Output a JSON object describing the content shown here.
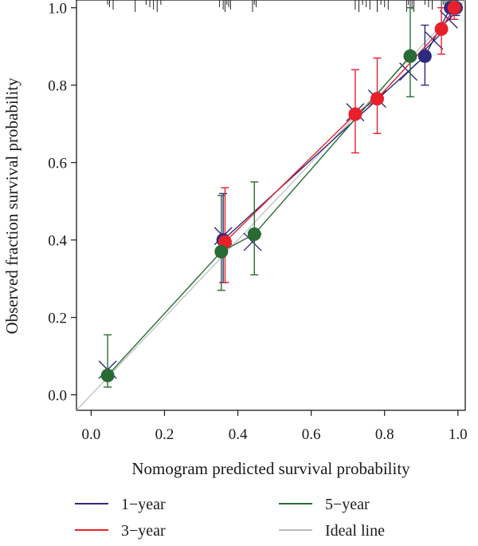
{
  "chart_data": {
    "type": "scatter",
    "title": "",
    "xlabel": "Nomogram predicted survival probability",
    "ylabel": "Observed fraction survival probability",
    "xlim": [
      -0.04,
      1.02
    ],
    "ylim": [
      -0.04,
      1.02
    ],
    "xticks": [
      0.0,
      0.2,
      0.4,
      0.6,
      0.8,
      1.0
    ],
    "yticks": [
      0.0,
      0.2,
      0.4,
      0.6,
      0.8,
      1.0
    ],
    "xtick_labels": [
      "0.0",
      "0.2",
      "0.4",
      "0.6",
      "0.8",
      "1.0"
    ],
    "ytick_labels": [
      "0.0",
      "0.2",
      "0.4",
      "0.6",
      "0.8",
      "1.0"
    ],
    "legend_position": "bottom",
    "ideal_line": {
      "name": "Ideal line",
      "color": "#bdbdbd"
    },
    "series": [
      {
        "name": "1−year",
        "color": "#2e2a7f",
        "points": [
          {
            "x": 0.36,
            "y": 0.4,
            "lo": 0.29,
            "hi": 0.52
          },
          {
            "x": 0.91,
            "y": 0.875,
            "lo": 0.8,
            "hi": 0.955
          },
          {
            "x": 0.98,
            "y": 1.0,
            "lo": 0.97,
            "hi": 1.0
          },
          {
            "x": 0.995,
            "y": 1.0,
            "lo": 0.98,
            "hi": 1.0
          }
        ],
        "crosses": [
          {
            "x": 0.045,
            "y": 0.065
          },
          {
            "x": 0.36,
            "y": 0.41
          },
          {
            "x": 0.44,
            "y": 0.395
          },
          {
            "x": 0.72,
            "y": 0.73
          },
          {
            "x": 0.78,
            "y": 0.765
          },
          {
            "x": 0.865,
            "y": 0.835
          },
          {
            "x": 0.935,
            "y": 0.915
          },
          {
            "x": 0.975,
            "y": 0.97
          }
        ]
      },
      {
        "name": "3−year",
        "color": "#e8202a",
        "points": [
          {
            "x": 0.365,
            "y": 0.395,
            "lo": 0.29,
            "hi": 0.535
          },
          {
            "x": 0.72,
            "y": 0.725,
            "lo": 0.625,
            "hi": 0.84
          },
          {
            "x": 0.78,
            "y": 0.765,
            "lo": 0.675,
            "hi": 0.87
          },
          {
            "x": 0.955,
            "y": 0.945,
            "lo": 0.88,
            "hi": 1.0
          },
          {
            "x": 0.99,
            "y": 1.0,
            "lo": 0.97,
            "hi": 1.0
          }
        ]
      },
      {
        "name": "5−year",
        "color": "#2a6b35",
        "points": [
          {
            "x": 0.045,
            "y": 0.05,
            "lo": 0.02,
            "hi": 0.155
          },
          {
            "x": 0.355,
            "y": 0.37,
            "lo": 0.27,
            "hi": 0.515
          },
          {
            "x": 0.445,
            "y": 0.415,
            "lo": 0.31,
            "hi": 0.55
          },
          {
            "x": 0.87,
            "y": 0.875,
            "lo": 0.77,
            "hi": 1.0
          }
        ]
      }
    ],
    "rug_x": [
      0.045,
      0.05,
      0.06,
      0.12,
      0.15,
      0.16,
      0.17,
      0.18,
      0.19,
      0.35,
      0.36,
      0.365,
      0.37,
      0.375,
      0.38,
      0.44,
      0.445,
      0.45,
      0.72,
      0.73,
      0.74,
      0.75,
      0.76,
      0.78,
      0.79,
      0.8,
      0.81,
      0.86,
      0.865,
      0.87,
      0.875,
      0.88,
      0.91,
      0.92,
      0.93,
      0.955,
      0.96,
      0.965,
      0.97,
      0.975,
      0.98,
      0.985,
      0.99,
      0.995,
      1.0
    ]
  },
  "legend": [
    {
      "label": "1−year",
      "color": "#2e2a7f"
    },
    {
      "label": "5−year",
      "color": "#2a6b35"
    },
    {
      "label": "3−year",
      "color": "#e8202a"
    },
    {
      "label": "Ideal line",
      "color": "#bdbdbd"
    }
  ]
}
